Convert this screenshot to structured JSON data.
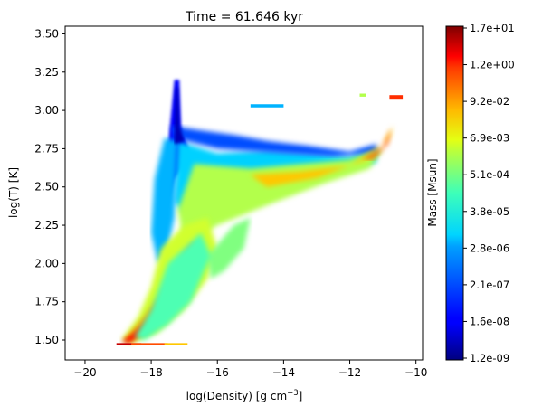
{
  "chart_data": {
    "type": "heatmap",
    "title": "Time = 61.646 kyr",
    "xlabel_main": "log(Density) [g cm",
    "xlabel_sup": "−3",
    "xlabel_tail": "]",
    "ylabel": "log(T) [K]",
    "xlim": [
      -20.6,
      -9.8
    ],
    "ylim": [
      1.37,
      3.55
    ],
    "xticks": [
      -20,
      -18,
      -16,
      -14,
      -12,
      -10
    ],
    "xtick_labels": [
      "−20",
      "−18",
      "−16",
      "−14",
      "−12",
      "−10"
    ],
    "yticks": [
      1.5,
      1.75,
      2.0,
      2.25,
      2.5,
      2.75,
      3.0,
      3.25,
      3.5
    ],
    "ytick_labels": [
      "1.50",
      "1.75",
      "2.00",
      "2.25",
      "2.50",
      "2.75",
      "3.00",
      "3.25",
      "3.50"
    ],
    "colorbar": {
      "label": "Mass [Msun]",
      "colormap": "jet",
      "tick_labels": [
        "1.2e-09",
        "1.6e-08",
        "2.1e-07",
        "2.8e-06",
        "3.8e-05",
        "5.1e-04",
        "6.9e-03",
        "9.2e-02",
        "1.2e+00",
        "1.7e+01"
      ]
    },
    "regions": [
      {
        "name": "upper-diffuse-band",
        "level": 0.33,
        "points": [
          [
            -17.2,
            2.8
          ],
          [
            -16,
            2.72
          ],
          [
            -14.5,
            2.74
          ],
          [
            -13,
            2.72
          ],
          [
            -12,
            2.7
          ],
          [
            -11.2,
            2.75
          ],
          [
            -11.2,
            2.66
          ],
          [
            -12.5,
            2.6
          ],
          [
            -14,
            2.5
          ],
          [
            -15.5,
            2.38
          ],
          [
            -16.8,
            2.28
          ],
          [
            -17.3,
            2.4
          ]
        ]
      },
      {
        "name": "left-shoulder",
        "level": 0.3,
        "points": [
          [
            -17.6,
            2.82
          ],
          [
            -17.2,
            2.8
          ],
          [
            -17.3,
            2.3
          ],
          [
            -17.5,
            2.1
          ],
          [
            -17.8,
            2.0
          ],
          [
            -18.0,
            2.2
          ],
          [
            -17.9,
            2.55
          ]
        ]
      },
      {
        "name": "upper-edge",
        "level": 0.2,
        "points": [
          [
            -17.4,
            2.9
          ],
          [
            -16.5,
            2.87
          ],
          [
            -15.5,
            2.84
          ],
          [
            -14.5,
            2.8
          ],
          [
            -13.3,
            2.77
          ],
          [
            -12,
            2.73
          ],
          [
            -11.2,
            2.78
          ],
          [
            -11.2,
            2.72
          ],
          [
            -12.5,
            2.7
          ],
          [
            -14,
            2.72
          ],
          [
            -16,
            2.75
          ],
          [
            -17.3,
            2.82
          ]
        ]
      },
      {
        "name": "mid-band",
        "level": 0.55,
        "points": [
          [
            -16.7,
            2.65
          ],
          [
            -15,
            2.62
          ],
          [
            -13.5,
            2.65
          ],
          [
            -12,
            2.68
          ],
          [
            -11.0,
            2.75
          ],
          [
            -11.4,
            2.62
          ],
          [
            -12.8,
            2.52
          ],
          [
            -14.5,
            2.38
          ],
          [
            -16,
            2.25
          ],
          [
            -17,
            2.12
          ],
          [
            -17.2,
            2.35
          ]
        ]
      },
      {
        "name": "collapse-track-wide",
        "level": 0.58,
        "points": [
          [
            -17.7,
            2.1
          ],
          [
            -17.0,
            2.25
          ],
          [
            -16.3,
            2.3
          ],
          [
            -16.0,
            2.1
          ],
          [
            -16.3,
            1.9
          ],
          [
            -17.0,
            1.7
          ],
          [
            -17.8,
            1.55
          ],
          [
            -18.6,
            1.48
          ],
          [
            -18.9,
            1.5
          ],
          [
            -18.4,
            1.65
          ],
          [
            -18.0,
            1.85
          ]
        ]
      },
      {
        "name": "collapse-track-core",
        "level": 0.75,
        "points": [
          [
            -17.3,
            1.95
          ],
          [
            -16.9,
            2.1
          ],
          [
            -16.6,
            2.15
          ],
          [
            -16.7,
            1.95
          ],
          [
            -17.3,
            1.75
          ],
          [
            -18.0,
            1.58
          ],
          [
            -18.6,
            1.49
          ],
          [
            -18.8,
            1.5
          ],
          [
            -18.2,
            1.65
          ],
          [
            -17.7,
            1.8
          ]
        ]
      },
      {
        "name": "collapse-track-peak",
        "level": 0.88,
        "points": [
          [
            -17.9,
            1.65
          ],
          [
            -17.6,
            1.75
          ],
          [
            -17.5,
            1.7
          ],
          [
            -18.0,
            1.58
          ],
          [
            -18.7,
            1.48
          ],
          [
            -18.9,
            1.49
          ],
          [
            -18.4,
            1.56
          ]
        ]
      },
      {
        "name": "hot-ridge",
        "level": 0.68,
        "points": [
          [
            -15,
            2.58
          ],
          [
            -13.5,
            2.6
          ],
          [
            -12,
            2.64
          ],
          [
            -11.0,
            2.78
          ],
          [
            -10.7,
            2.9
          ],
          [
            -10.8,
            2.82
          ],
          [
            -11.5,
            2.68
          ],
          [
            -13,
            2.56
          ],
          [
            -14.5,
            2.5
          ]
        ]
      },
      {
        "name": "hot-ridge-tip",
        "level": 0.78,
        "points": [
          [
            -11.6,
            2.68
          ],
          [
            -11.0,
            2.76
          ],
          [
            -10.75,
            2.88
          ],
          [
            -10.85,
            2.78
          ],
          [
            -11.3,
            2.68
          ]
        ]
      },
      {
        "name": "right-lower-arm",
        "level": 0.5,
        "points": [
          [
            -16.3,
            2.05
          ],
          [
            -15.5,
            2.25
          ],
          [
            -15,
            2.3
          ],
          [
            -15.2,
            2.1
          ],
          [
            -15.8,
            1.95
          ],
          [
            -16.2,
            1.9
          ]
        ]
      },
      {
        "name": "lower-green-tail",
        "level": 0.45,
        "points": [
          [
            -17.5,
            2.0
          ],
          [
            -16.5,
            2.2
          ],
          [
            -16.2,
            2.05
          ],
          [
            -16.8,
            1.75
          ],
          [
            -17.5,
            1.6
          ],
          [
            -18.2,
            1.5
          ],
          [
            -18.5,
            1.52
          ],
          [
            -18.0,
            1.7
          ]
        ]
      }
    ],
    "streaks": [
      {
        "name": "top-right-tip",
        "level": 0.83,
        "points": [
          [
            -10.8,
            3.07
          ],
          [
            -10.4,
            3.07
          ],
          [
            -10.4,
            3.1
          ],
          [
            -10.8,
            3.1
          ]
        ]
      },
      {
        "name": "top-right-tip-green",
        "level": 0.55,
        "points": [
          [
            -11.7,
            3.09
          ],
          [
            -11.5,
            3.09
          ],
          [
            -11.5,
            3.11
          ],
          [
            -11.7,
            3.11
          ]
        ]
      },
      {
        "name": "bottom-red-base",
        "level": 0.93,
        "points": [
          [
            -19.05,
            1.465
          ],
          [
            -18.3,
            1.465
          ],
          [
            -18.3,
            1.48
          ],
          [
            -19.05,
            1.48
          ]
        ]
      },
      {
        "name": "bottom-orange-base",
        "level": 0.8,
        "points": [
          [
            -18.6,
            1.465
          ],
          [
            -17.5,
            1.465
          ],
          [
            -17.5,
            1.48
          ],
          [
            -18.6,
            1.48
          ]
        ]
      },
      {
        "name": "bottom-yellow-base",
        "level": 0.68,
        "points": [
          [
            -17.6,
            1.465
          ],
          [
            -16.9,
            1.465
          ],
          [
            -16.9,
            1.48
          ],
          [
            -17.6,
            1.48
          ]
        ]
      },
      {
        "name": "upper-dotted-strip",
        "level": 0.3,
        "points": [
          [
            -15.0,
            3.02
          ],
          [
            -14.0,
            3.02
          ],
          [
            -14.0,
            3.04
          ],
          [
            -15.0,
            3.04
          ]
        ]
      }
    ],
    "spike": {
      "name": "blue-spike",
      "level": 0.12,
      "points": [
        [
          -17.3,
          3.2
        ],
        [
          -17.15,
          3.2
        ],
        [
          -17.1,
          2.9
        ],
        [
          -16.8,
          2.7
        ],
        [
          -17.3,
          2.55
        ],
        [
          -17.6,
          2.3
        ],
        [
          -17.5,
          2.75
        ]
      ]
    },
    "spike_core": {
      "name": "blue-spike-core",
      "level": 0.05,
      "points": [
        [
          -17.25,
          3.15
        ],
        [
          -17.2,
          3.15
        ],
        [
          -17.15,
          2.9
        ],
        [
          -17.0,
          2.8
        ],
        [
          -17.3,
          2.78
        ]
      ]
    }
  }
}
